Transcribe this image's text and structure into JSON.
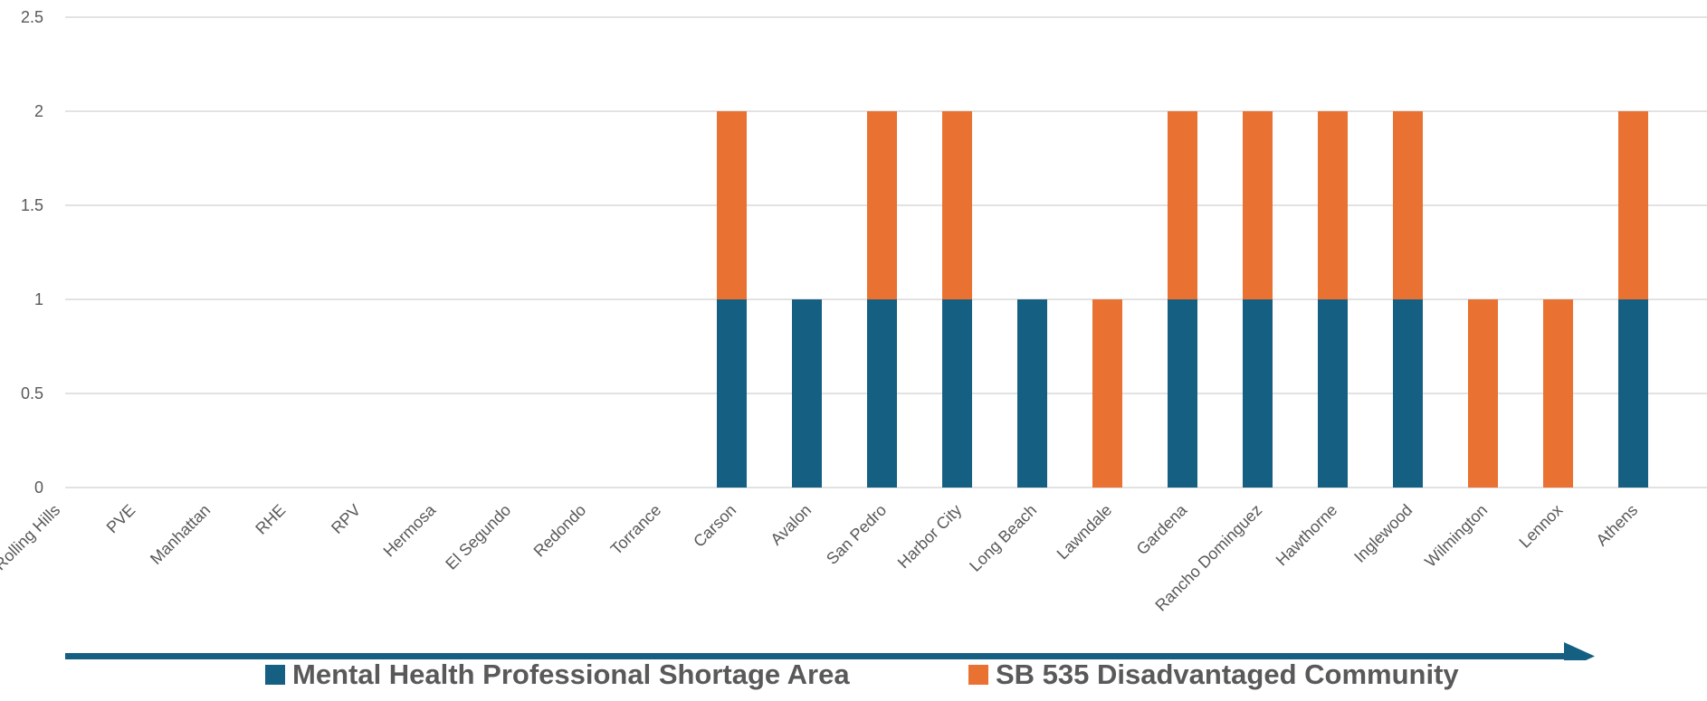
{
  "chart_data": {
    "type": "bar",
    "stacked": true,
    "categories": [
      "Rolling Hills",
      "PVE",
      "Manhattan",
      "RHE",
      "RPV",
      "Hermosa",
      "El Segundo",
      "Redondo",
      "Torrance",
      "Carson",
      "Avalon",
      "San Pedro",
      "Harbor City",
      "Long Beach",
      "Lawndale",
      "Gardena",
      "Rancho Dominguez",
      "Hawthorne",
      "Inglewood",
      "Wilmington",
      "Lennox",
      "Athens"
    ],
    "series": [
      {
        "name": "Mental Health Professional Shortage Area",
        "color": "#156082",
        "values": [
          0,
          0,
          0,
          0,
          0,
          0,
          0,
          0,
          0,
          1,
          1,
          1,
          1,
          1,
          0,
          1,
          1,
          1,
          1,
          0,
          0,
          1
        ]
      },
      {
        "name": "SB 535 Disadvantaged Community",
        "color": "#E97132",
        "values": [
          0,
          0,
          0,
          0,
          0,
          0,
          0,
          0,
          0,
          1,
          0,
          1,
          1,
          0,
          1,
          1,
          1,
          1,
          1,
          1,
          1,
          1
        ]
      }
    ],
    "ylim": [
      0,
      2.5
    ],
    "yticks": [
      "0",
      "0.5",
      "1",
      "1.5",
      "2",
      "2.5"
    ],
    "ytick_values": [
      0,
      0.5,
      1,
      1.5,
      2,
      2.5
    ],
    "grid": true,
    "legend_position": "bottom",
    "arrow": true,
    "title": "",
    "xlabel": "",
    "ylabel": ""
  },
  "colors": {
    "grid": "#d9d9d9",
    "text": "#595959",
    "arrow": "#156082"
  }
}
